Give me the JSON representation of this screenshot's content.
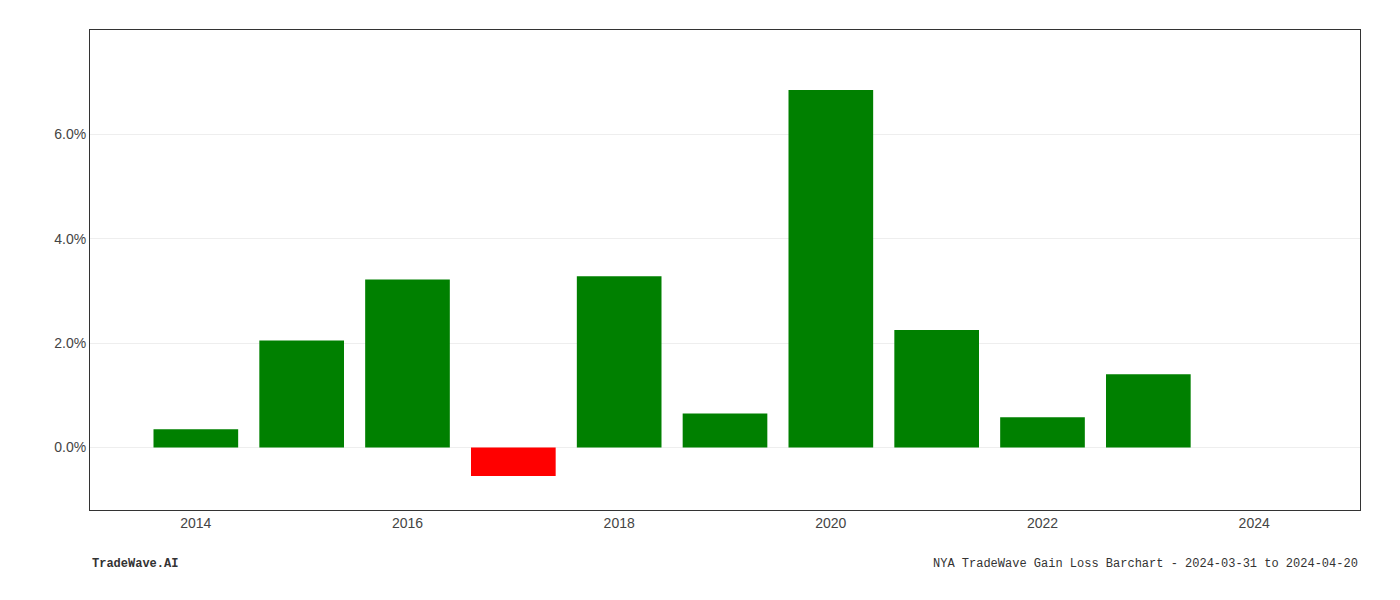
{
  "chart_data": {
    "type": "bar",
    "x": [
      2014,
      2015,
      2016,
      2017,
      2018,
      2019,
      2020,
      2021,
      2022,
      2023
    ],
    "values": [
      0.0035,
      0.0205,
      0.0322,
      -0.0055,
      0.0328,
      0.0065,
      0.0685,
      0.0225,
      0.0058,
      0.014
    ],
    "colors": [
      "#008000",
      "#008000",
      "#008000",
      "#ff0000",
      "#008000",
      "#008000",
      "#008000",
      "#008000",
      "#008000",
      "#008000"
    ],
    "xlim": [
      2013.0,
      2025.0
    ],
    "xticks": [
      2014,
      2016,
      2018,
      2020,
      2022,
      2024
    ],
    "ylim": [
      -0.012,
      0.08
    ],
    "yticks": [
      {
        "value": 0.0,
        "label": "0.0%"
      },
      {
        "value": 0.02,
        "label": "2.0%"
      },
      {
        "value": 0.04,
        "label": "4.0%"
      },
      {
        "value": 0.06,
        "label": "6.0%"
      }
    ],
    "grid": true,
    "annotations": [
      "TradeWave.AI",
      "NYA TradeWave Gain Loss Barchart - 2024-03-31 to 2024-04-20"
    ]
  }
}
